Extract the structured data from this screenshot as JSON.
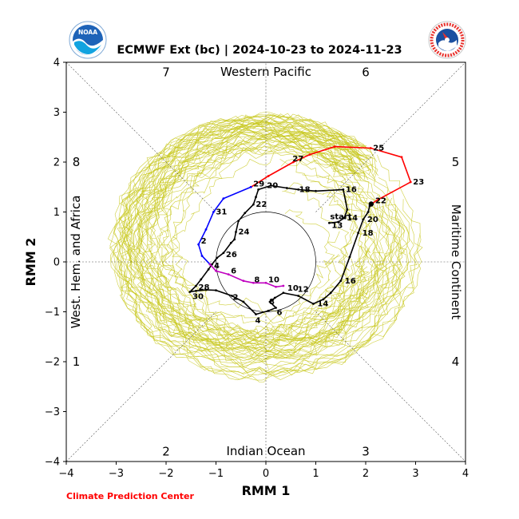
{
  "header": {
    "title": "ECMWF Ext (bc) | 2024-10-23 to 2024-11-23",
    "noaa_logo_text": "NOAA",
    "nws_logo_text": "NATIONAL WEATHER SERVICE"
  },
  "footer": {
    "credit": "Climate Prediction Center"
  },
  "chart_data": {
    "type": "line",
    "xlabel": "RMM 1",
    "ylabel": "RMM 2",
    "xlim": [
      -4,
      4
    ],
    "ylim": [
      -4,
      4
    ],
    "xticks": [
      "−4",
      "−3",
      "−2",
      "−1",
      "0",
      "1",
      "2",
      "3",
      "4"
    ],
    "yticks": [
      "−4",
      "−3",
      "−2",
      "−1",
      "0",
      "1",
      "2",
      "3",
      "4"
    ],
    "regions": {
      "top": "Western Pacific",
      "bottom": "Indian Ocean",
      "left": "West. Hem. and Africa",
      "right": "Maritime Continent"
    },
    "phases": [
      {
        "label": "1",
        "x": -3.8,
        "y": -2.0
      },
      {
        "label": "2",
        "x": -2.0,
        "y": -3.8
      },
      {
        "label": "3",
        "x": 2.0,
        "y": -3.8
      },
      {
        "label": "4",
        "x": 3.8,
        "y": -2.0
      },
      {
        "label": "5",
        "x": 3.8,
        "y": 2.0
      },
      {
        "label": "6",
        "x": 2.0,
        "y": 3.8
      },
      {
        "label": "7",
        "x": -2.0,
        "y": 3.8
      },
      {
        "label": "8",
        "x": -3.8,
        "y": 2.0
      }
    ],
    "unit_circle_radius": 1,
    "colors": {
      "observed": "#000000",
      "ensemble": "#c8c81e",
      "week1": "#ff0000",
      "week2": "#0000ff",
      "week3": "#c000c0",
      "week4": "#000000"
    },
    "series": [
      {
        "points": [
          [
            1.27,
            0.78
          ],
          [
            1.45,
            0.8
          ],
          [
            1.57,
            0.88
          ],
          [
            1.63,
            1.05
          ],
          [
            1.55,
            1.45
          ],
          [
            1.0,
            1.42
          ],
          [
            0.65,
            1.45
          ],
          [
            0.42,
            1.48
          ],
          [
            0.1,
            1.53
          ],
          [
            -0.15,
            1.45
          ],
          [
            -0.2,
            1.3
          ],
          [
            -0.25,
            1.15
          ],
          [
            -0.42,
            0.98
          ],
          [
            -0.55,
            0.82
          ],
          [
            -0.6,
            0.6
          ],
          [
            -0.63,
            0.45
          ],
          [
            -0.7,
            0.38
          ],
          [
            -0.85,
            0.18
          ],
          [
            -0.98,
            0.08
          ],
          [
            -1.08,
            -0.05
          ],
          [
            -1.15,
            -0.15
          ],
          [
            -1.3,
            -0.35
          ],
          [
            -1.4,
            -0.48
          ],
          [
            -1.52,
            -0.6
          ],
          [
            -1.4,
            -0.58
          ],
          [
            -1.2,
            -0.56
          ],
          [
            -1.0,
            -0.57
          ],
          [
            -0.68,
            -0.68
          ],
          [
            -0.45,
            -0.8
          ],
          [
            -0.2,
            -1.05
          ],
          [
            0.05,
            -0.98
          ],
          [
            0.2,
            -0.92
          ],
          [
            0.08,
            -0.8
          ],
          [
            0.18,
            -0.72
          ],
          [
            0.35,
            -0.62
          ],
          [
            0.65,
            -0.68
          ],
          [
            0.95,
            -0.84
          ],
          [
            1.15,
            -0.75
          ],
          [
            1.3,
            -0.62
          ],
          [
            1.5,
            -0.38
          ],
          [
            1.68,
            0.1
          ],
          [
            1.85,
            0.58
          ],
          [
            1.95,
            0.85
          ],
          [
            2.05,
            1.0
          ],
          [
            2.08,
            1.12
          ],
          [
            2.11,
            1.16
          ]
        ],
        "labels": [
          {
            "t": "start",
            "i": 0,
            "dx": -2,
            "dy": -8
          },
          {
            "t": "13",
            "i": 0,
            "dx": 0,
            "dy": 3
          },
          {
            "t": "14",
            "i": 2,
            "dx": 0,
            "dy": 0
          },
          {
            "t": "16",
            "i": 4,
            "dx": 0,
            "dy": 0
          },
          {
            "t": "18",
            "i": 6,
            "dx": -2,
            "dy": 0
          },
          {
            "t": "20",
            "i": 8,
            "dx": -8,
            "dy": 0
          },
          {
            "t": "22",
            "i": 11,
            "dx": 0,
            "dy": 0
          },
          {
            "t": "24",
            "i": 14,
            "dx": 0,
            "dy": 0
          },
          {
            "t": "26",
            "i": 17,
            "dx": 0,
            "dy": 2
          },
          {
            "t": "28",
            "i": 22,
            "dx": 0,
            "dy": 2
          },
          {
            "t": "30",
            "i": 23,
            "dx": 0,
            "dy": 6
          },
          {
            "t": "2",
            "i": 27,
            "dx": -2,
            "dy": 2
          },
          {
            "t": "4",
            "i": 29,
            "dx": -4,
            "dy": 8
          },
          {
            "t": "6",
            "i": 31,
            "dx": -2,
            "dy": 6
          },
          {
            "t": "8",
            "i": 32,
            "dx": -4,
            "dy": 0
          },
          {
            "t": "10",
            "i": 34,
            "dx": 2,
            "dy": -6
          },
          {
            "t": "12",
            "i": 35,
            "dx": -4,
            "dy": -8
          },
          {
            "t": "14",
            "i": 36,
            "dx": 2,
            "dy": 0
          },
          {
            "t": "16",
            "i": 39,
            "dx": 2,
            "dy": 0
          },
          {
            "t": "18",
            "i": 41,
            "dx": 2,
            "dy": 0
          },
          {
            "t": "20",
            "i": 42,
            "dx": 2,
            "dy": 0
          },
          {
            "t": "22",
            "i": 45,
            "dx": 2,
            "dy": -4
          }
        ]
      },
      {
        "points": [
          [
            2.11,
            1.16
          ],
          [
            2.25,
            1.25
          ],
          [
            2.9,
            1.6
          ],
          [
            2.72,
            2.1
          ],
          [
            2.1,
            2.28
          ],
          [
            1.38,
            2.31
          ],
          [
            0.88,
            2.15
          ],
          [
            0.55,
            2.0
          ],
          [
            0.05,
            1.72
          ],
          [
            -0.3,
            1.5
          ]
        ],
        "labels": [
          {
            "t": "23",
            "i": 2,
            "dx": 0,
            "dy": 0
          },
          {
            "t": "25",
            "i": 4,
            "dx": 0,
            "dy": 0
          },
          {
            "t": "27",
            "i": 7,
            "dx": -4,
            "dy": -4
          }
        ]
      },
      {
        "points": [
          [
            -0.3,
            1.5
          ],
          [
            -0.85,
            1.27
          ],
          [
            -1.05,
            1.0
          ],
          [
            -1.2,
            0.65
          ],
          [
            -1.35,
            0.35
          ],
          [
            -1.28,
            0.12
          ],
          [
            -1.12,
            -0.05
          ]
        ],
        "labels": [
          {
            "t": "29",
            "i": 0,
            "dx": 0,
            "dy": -4
          },
          {
            "t": "31",
            "i": 2,
            "dx": 0,
            "dy": 0
          },
          {
            "t": "2",
            "i": 4,
            "dx": 0,
            "dy": -4
          }
        ]
      },
      {
        "points": [
          [
            -1.12,
            -0.05
          ],
          [
            -1.0,
            -0.18
          ],
          [
            -0.75,
            -0.25
          ],
          [
            -0.45,
            -0.38
          ],
          [
            -0.25,
            -0.42
          ],
          [
            0.0,
            -0.42
          ],
          [
            0.2,
            -0.5
          ],
          [
            0.35,
            -0.48
          ]
        ],
        "labels": [
          {
            "t": "4",
            "i": 0,
            "dx": 2,
            "dy": 2
          },
          {
            "t": "6",
            "i": 2,
            "dx": 0,
            "dy": -4
          },
          {
            "t": "8",
            "i": 4,
            "dx": -2,
            "dy": -4
          },
          {
            "t": "10",
            "i": 5,
            "dx": 0,
            "dy": -4
          }
        ]
      }
    ]
  }
}
